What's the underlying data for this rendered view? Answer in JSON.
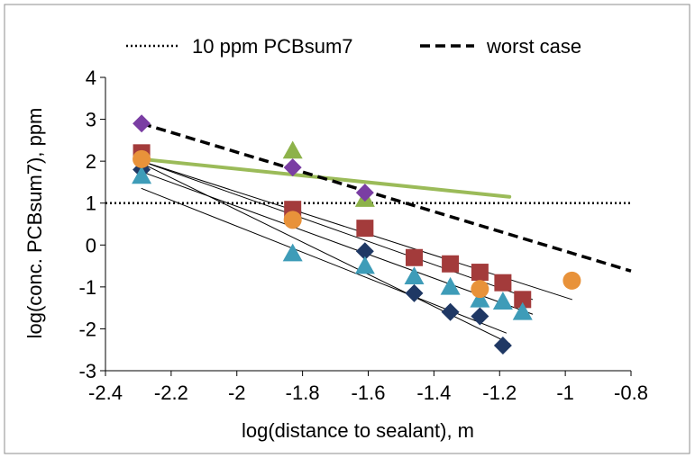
{
  "chart_data": {
    "type": "scatter",
    "title": "",
    "xlabel": "log(distance to sealant), m",
    "ylabel": "log(conc. PCBsum7), ppm",
    "xlim": [
      -2.4,
      -0.8
    ],
    "ylim": [
      -3,
      4
    ],
    "x_ticks": [
      -2.4,
      -2.2,
      -2,
      -1.8,
      -1.6,
      -1.4,
      -1.2,
      -1,
      -0.8
    ],
    "x_tick_labels": [
      "-2.4",
      "-2.2",
      "-2",
      "-1.8",
      "-1.6",
      "-1.4",
      "-1.2",
      "-1",
      "-0.8"
    ],
    "y_ticks": [
      -3,
      -2,
      -1,
      0,
      1,
      2,
      3,
      4
    ],
    "y_tick_labels": [
      "-3",
      "-2",
      "-1",
      "0",
      "1",
      "2",
      "3",
      "4"
    ],
    "grid": false,
    "legend_position": "top",
    "legend": [
      {
        "label": "10 ppm PCBsum7",
        "style": "dotted",
        "color": "#000000"
      },
      {
        "label": "worst case",
        "style": "dashed",
        "color": "#000000"
      }
    ],
    "reference_lines": [
      {
        "name": "10 ppm PCBsum7",
        "style": "dotted",
        "color": "#000000",
        "width": 2.5,
        "x": [
          -2.4,
          -0.8
        ],
        "y": [
          1,
          1
        ]
      },
      {
        "name": "worst case",
        "style": "dashed",
        "color": "#000000",
        "width": 3.5,
        "x": [
          -2.29,
          -0.8
        ],
        "y": [
          2.9,
          -0.62
        ]
      }
    ],
    "series": [
      {
        "marker": "diamond",
        "color": "#1F3864",
        "x": [
          -2.29,
          -1.83,
          -1.61,
          -1.46,
          -1.35,
          -1.26,
          -1.19
        ],
        "y": [
          1.8,
          0.8,
          -0.15,
          -1.15,
          -1.6,
          -1.7,
          -2.4
        ]
      },
      {
        "marker": "square",
        "color": "#A33B3B",
        "x": [
          -2.29,
          -1.83,
          -1.61,
          -1.46,
          -1.35,
          -1.26,
          -1.19,
          -1.13
        ],
        "y": [
          2.2,
          0.85,
          0.4,
          -0.3,
          -0.45,
          -0.65,
          -0.9,
          -1.3
        ]
      },
      {
        "marker": "triangle",
        "color": "#3E9CB8",
        "x": [
          -2.29,
          -1.83,
          -1.61,
          -1.46,
          -1.35,
          -1.26,
          -1.19,
          -1.13
        ],
        "y": [
          1.65,
          -0.2,
          -0.5,
          -0.75,
          -1.0,
          -1.3,
          -1.35,
          -1.6
        ]
      },
      {
        "marker": "circle",
        "color": "#E8923A",
        "x": [
          -2.29,
          -1.83,
          -1.26,
          -0.98
        ],
        "y": [
          2.05,
          0.6,
          -1.05,
          -0.85
        ]
      },
      {
        "marker": "triangle",
        "color": "#8DB24A",
        "x": [
          -1.83,
          -1.61
        ],
        "y": [
          2.25,
          1.1
        ]
      },
      {
        "marker": "diamond",
        "color": "#7A3EA3",
        "x": [
          -2.29,
          -1.83,
          -1.61
        ],
        "y": [
          2.9,
          1.85,
          1.25
        ]
      }
    ],
    "trendlines": [
      {
        "color": "#000000",
        "width": 1,
        "x": [
          -2.29,
          -1.17
        ],
        "y": [
          1.95,
          -2.35
        ]
      },
      {
        "color": "#000000",
        "width": 1,
        "x": [
          -2.29,
          -1.1
        ],
        "y": [
          2.0,
          -1.3
        ]
      },
      {
        "color": "#000000",
        "width": 1,
        "x": [
          -2.29,
          -1.1
        ],
        "y": [
          1.75,
          -1.65
        ]
      },
      {
        "color": "#000000",
        "width": 1,
        "x": [
          -2.29,
          -1.18
        ],
        "y": [
          1.35,
          -2.1
        ]
      },
      {
        "color": "#000000",
        "width": 1,
        "x": [
          -2.29,
          -0.98
        ],
        "y": [
          2.0,
          -1.3
        ]
      },
      {
        "color": "#9BBB59",
        "width": 4,
        "x": [
          -2.29,
          -1.17
        ],
        "y": [
          2.05,
          1.15
        ]
      }
    ]
  }
}
